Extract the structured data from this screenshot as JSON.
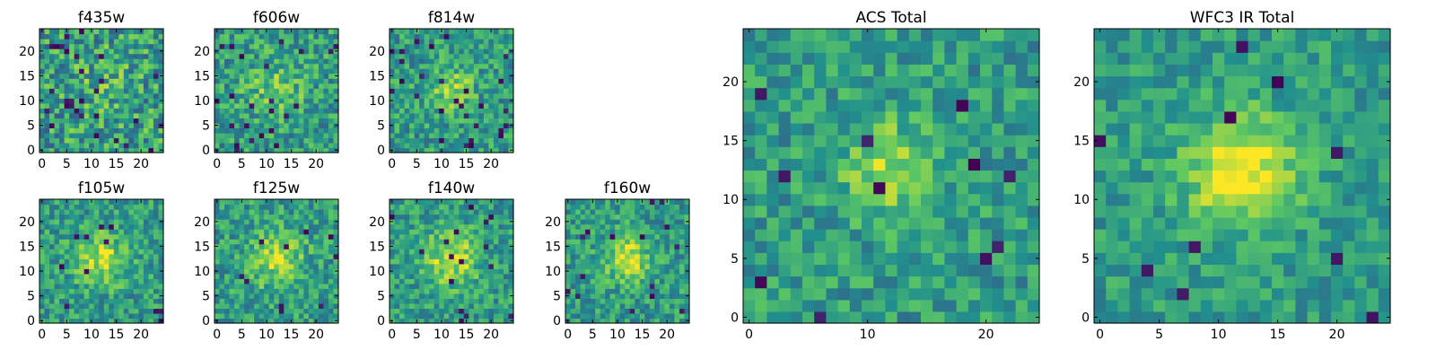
{
  "chart_data": [
    {
      "type": "heatmap",
      "title": "f435w",
      "xticks": [
        "0",
        "5",
        "10",
        "15",
        "20"
      ],
      "yticks": [
        "0",
        "5",
        "10",
        "15",
        "20"
      ],
      "extent": [
        -0.5,
        24.5,
        -0.5,
        24.5
      ],
      "grid": [
        25,
        25
      ],
      "seed": 11,
      "peak": 0.08,
      "sigma": 6,
      "noise": 0.55,
      "dark_frac": 0.04
    },
    {
      "type": "heatmap",
      "title": "f606w",
      "xticks": [
        "0",
        "5",
        "10",
        "15",
        "20"
      ],
      "yticks": [
        "0",
        "5",
        "10",
        "15",
        "20"
      ],
      "extent": [
        -0.5,
        24.5,
        -0.5,
        24.5
      ],
      "grid": [
        25,
        25
      ],
      "seed": 23,
      "peak": 0.2,
      "sigma": 4,
      "noise": 0.45,
      "dark_frac": 0.03
    },
    {
      "type": "heatmap",
      "title": "f814w",
      "xticks": [
        "0",
        "5",
        "10",
        "15",
        "20"
      ],
      "yticks": [
        "0",
        "5",
        "10",
        "15",
        "20"
      ],
      "extent": [
        -0.5,
        24.5,
        -0.5,
        24.5
      ],
      "grid": [
        25,
        25
      ],
      "seed": 37,
      "peak": 0.3,
      "sigma": 3,
      "noise": 0.42,
      "dark_frac": 0.03
    },
    {
      "type": "heatmap",
      "title": "f105w",
      "xticks": [
        "0",
        "5",
        "10",
        "15",
        "20"
      ],
      "yticks": [
        "0",
        "5",
        "10",
        "15",
        "20"
      ],
      "extent": [
        -0.5,
        24.5,
        -0.5,
        24.5
      ],
      "grid": [
        25,
        25
      ],
      "seed": 41,
      "peak": 0.35,
      "sigma": 3.5,
      "noise": 0.4,
      "dark_frac": 0.02
    },
    {
      "type": "heatmap",
      "title": "f125w",
      "xticks": [
        "0",
        "5",
        "10",
        "15",
        "20"
      ],
      "yticks": [
        "0",
        "5",
        "10",
        "15",
        "20"
      ],
      "extent": [
        -0.5,
        24.5,
        -0.5,
        24.5
      ],
      "grid": [
        25,
        25
      ],
      "seed": 53,
      "peak": 0.3,
      "sigma": 4,
      "noise": 0.4,
      "dark_frac": 0.02
    },
    {
      "type": "heatmap",
      "title": "f140w",
      "xticks": [
        "0",
        "5",
        "10",
        "15",
        "20"
      ],
      "yticks": [
        "0",
        "5",
        "10",
        "15",
        "20"
      ],
      "extent": [
        -0.5,
        24.5,
        -0.5,
        24.5
      ],
      "grid": [
        25,
        25
      ],
      "seed": 67,
      "peak": 0.35,
      "sigma": 4,
      "noise": 0.38,
      "dark_frac": 0.02
    },
    {
      "type": "heatmap",
      "title": "f160w",
      "xticks": [
        "0",
        "5",
        "10",
        "15",
        "20"
      ],
      "yticks": [
        "0",
        "5",
        "10",
        "15",
        "20"
      ],
      "extent": [
        -0.5,
        24.5,
        -0.5,
        24.5
      ],
      "grid": [
        25,
        25
      ],
      "seed": 79,
      "peak": 0.4,
      "sigma": 3,
      "noise": 0.38,
      "dark_frac": 0.02
    },
    {
      "type": "heatmap",
      "title": "ACS Total",
      "xticks": [
        "0",
        "10",
        "20"
      ],
      "yticks": [
        "0",
        "5",
        "10",
        "15",
        "20"
      ],
      "extent": [
        -0.5,
        24.5,
        -0.5,
        24.5
      ],
      "grid": [
        25,
        25
      ],
      "seed": 97,
      "peak": 0.3,
      "sigma": 3,
      "noise": 0.36,
      "dark_frac": 0.02
    },
    {
      "type": "heatmap",
      "title": "WFC3 IR Total",
      "xticks": [
        "0",
        "5",
        "10",
        "15",
        "20"
      ],
      "yticks": [
        "0",
        "5",
        "10",
        "15",
        "20"
      ],
      "extent": [
        -0.5,
        24.5,
        -0.5,
        24.5
      ],
      "grid": [
        25,
        25
      ],
      "seed": 131,
      "peak": 0.5,
      "sigma": 3.2,
      "noise": 0.3,
      "dark_frac": 0.02
    }
  ],
  "colormap": [
    "#440154",
    "#3b528b",
    "#21908d",
    "#5dc863",
    "#fde725"
  ]
}
